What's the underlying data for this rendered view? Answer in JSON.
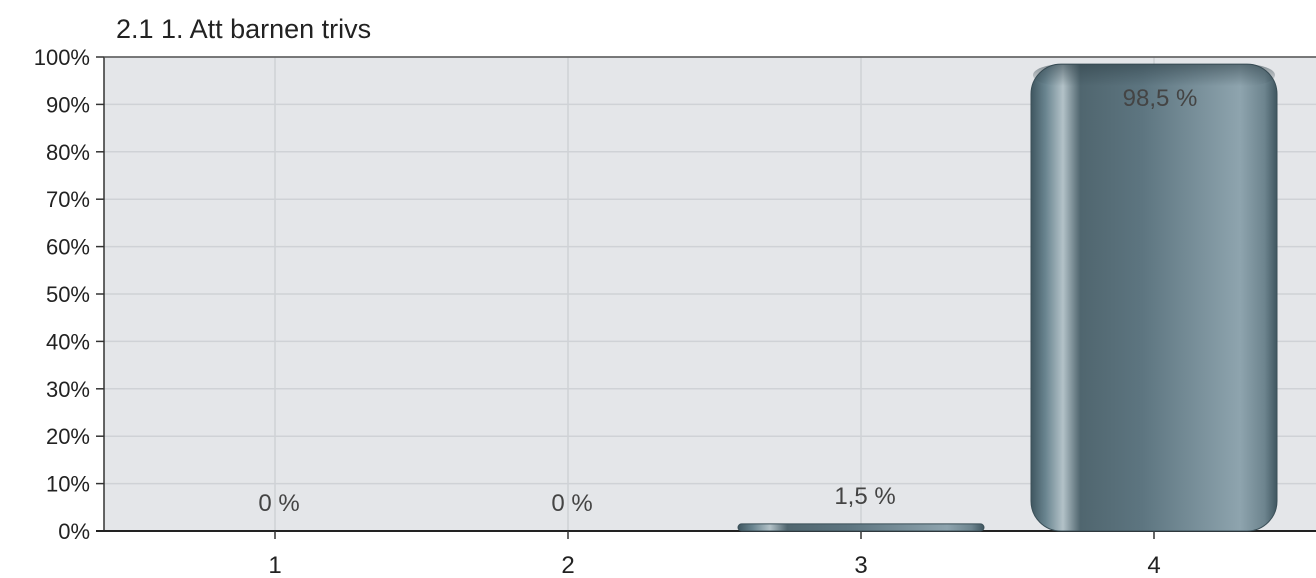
{
  "chart_data": {
    "type": "bar",
    "title": "2.1 1. Att barnen trivs",
    "xlabel": "",
    "ylabel": "",
    "categories": [
      "1",
      "2",
      "3",
      "4"
    ],
    "values": [
      0,
      0,
      1.5,
      98.5
    ],
    "data_labels": [
      "0 %",
      "0 %",
      "1,5 %",
      "98,5 %"
    ],
    "ylim": [
      0,
      100
    ],
    "y_ticks": [
      0,
      10,
      20,
      30,
      40,
      50,
      60,
      70,
      80,
      90,
      100
    ],
    "y_tick_labels": [
      "0%",
      "10%",
      "20%",
      "30%",
      "40%",
      "50%",
      "60%",
      "70%",
      "80%",
      "90%",
      "100%"
    ],
    "grid": true,
    "legend": "none",
    "colors": {
      "plot_background": "#e4e6e9",
      "grid": "#cfd2d6",
      "bar_dark": "#3f5660",
      "bar_mid": "#5d7580",
      "bar_light": "#8ea4ae",
      "bar_highlight": "#b3c2c8"
    }
  }
}
